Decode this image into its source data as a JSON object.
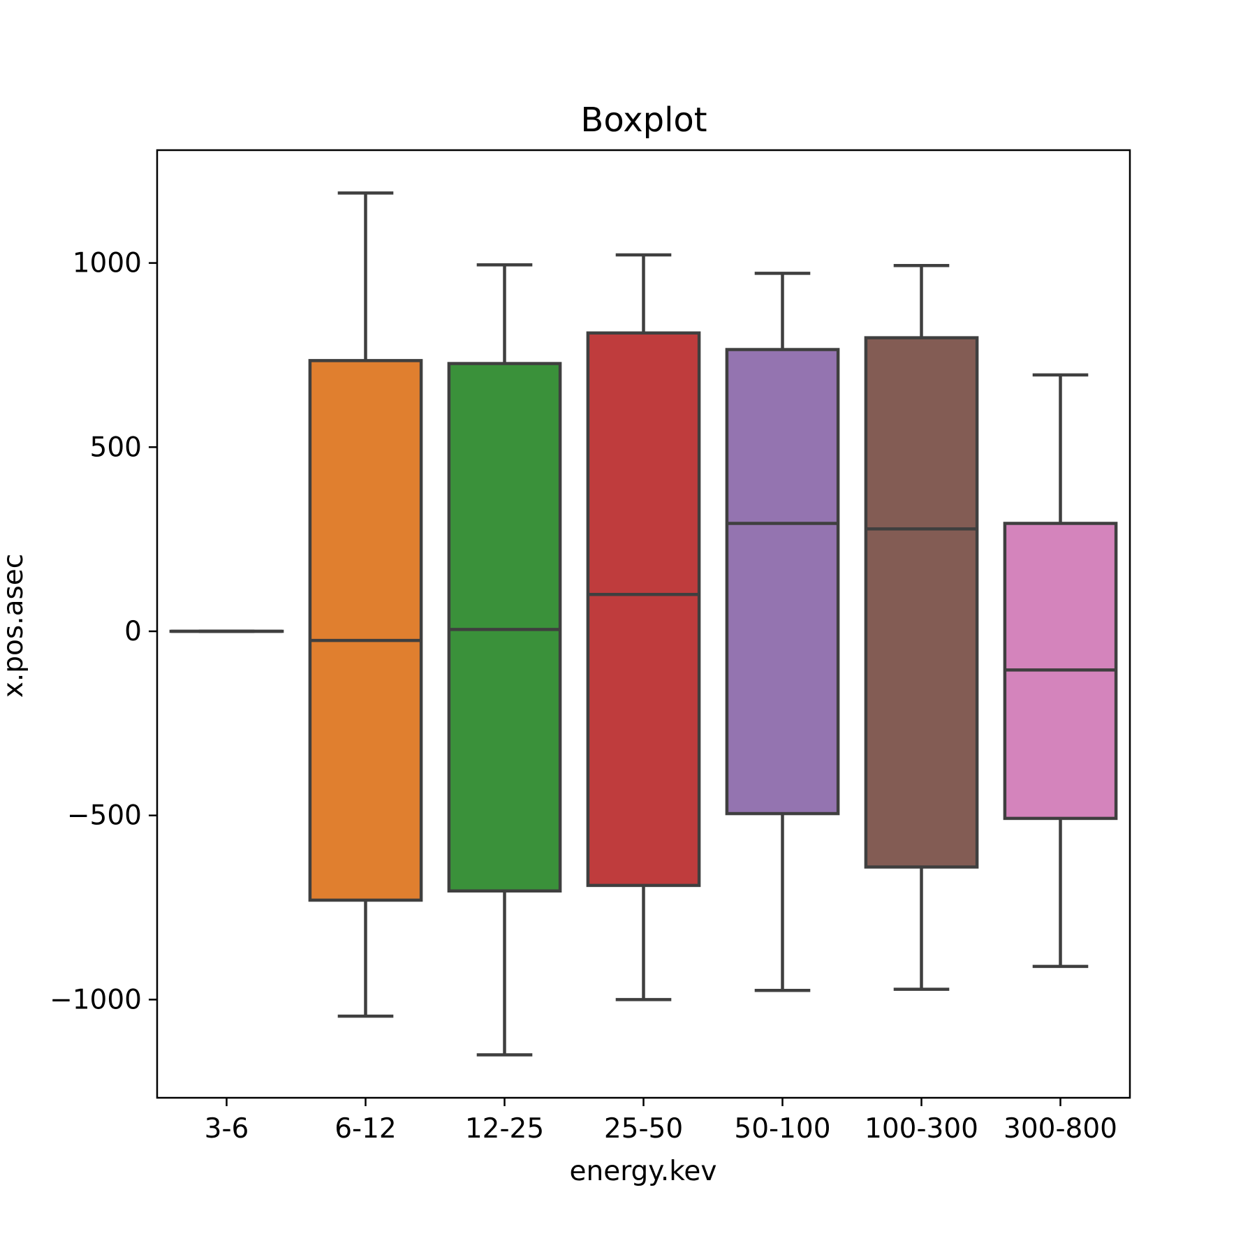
{
  "chart_data": {
    "type": "box",
    "title": "Boxplot",
    "xlabel": "energy.kev",
    "ylabel": "x.pos.asec",
    "ylim": [
      -1270,
      1300
    ],
    "yticks": [
      1000,
      500,
      0,
      -500,
      -1000
    ],
    "ytick_labels": [
      "1000",
      "500",
      "0",
      "−500",
      "−1000"
    ],
    "grid": false,
    "categories": [
      "3-6",
      "6-12",
      "12-25",
      "25-50",
      "50-100",
      "100-300",
      "300-800"
    ],
    "boxes": [
      {
        "category": "3-6",
        "whisker_low": 0,
        "q1": 0,
        "median": 0,
        "q3": 0,
        "whisker_high": 0,
        "color": "#1f77b4"
      },
      {
        "category": "6-12",
        "whisker_low": -1045,
        "q1": -730,
        "median": -25,
        "q3": 735,
        "whisker_high": 1190,
        "color": "#e07f2f"
      },
      {
        "category": "12-25",
        "whisker_low": -1150,
        "q1": -705,
        "median": 5,
        "q3": 727,
        "whisker_high": 995,
        "color": "#3a913a"
      },
      {
        "category": "25-50",
        "whisker_low": -1000,
        "q1": -690,
        "median": 100,
        "q3": 810,
        "whisker_high": 1022,
        "color": "#bf3c3d"
      },
      {
        "category": "50-100",
        "whisker_low": -975,
        "q1": -495,
        "median": 293,
        "q3": 765,
        "whisker_high": 972,
        "color": "#9474b0"
      },
      {
        "category": "100-300",
        "whisker_low": -972,
        "q1": -640,
        "median": 278,
        "q3": 797,
        "whisker_high": 993,
        "color": "#835c54"
      },
      {
        "category": "300-800",
        "whisker_low": -910,
        "q1": -508,
        "median": -105,
        "q3": 293,
        "whisker_high": 696,
        "color": "#d484bc"
      }
    ],
    "edge_color": "#3f3f3f"
  }
}
